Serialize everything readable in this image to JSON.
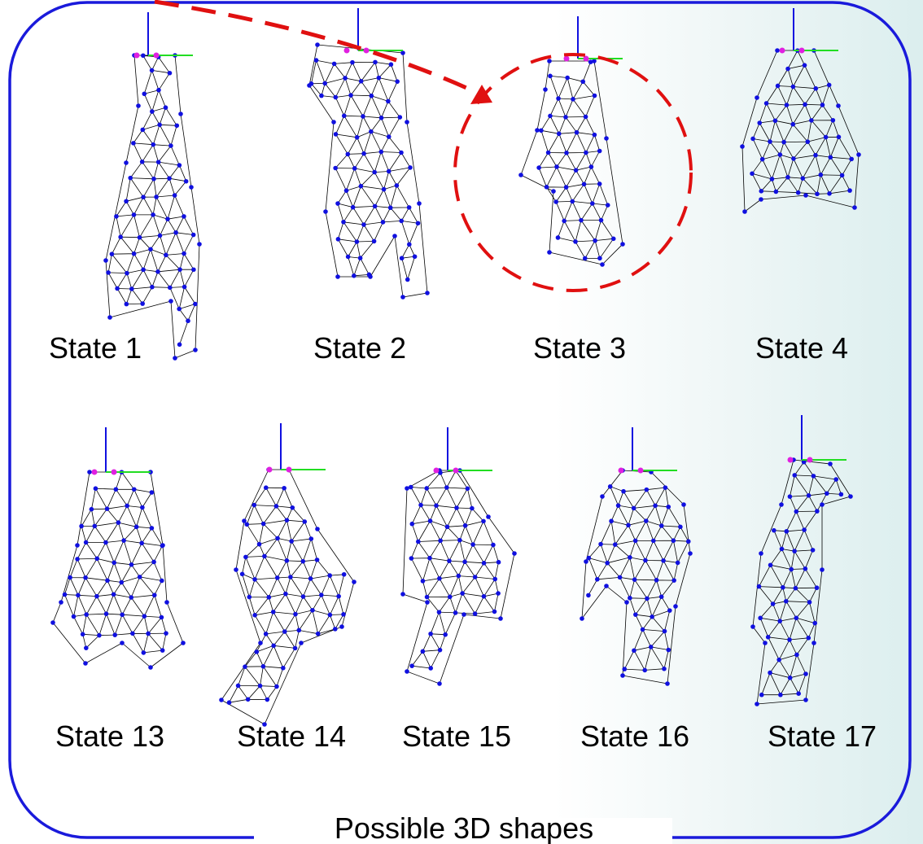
{
  "rows": [
    [
      {
        "label": "State 1"
      },
      {
        "label": "State 2"
      },
      {
        "label": "State 3"
      },
      {
        "label": "State 4"
      }
    ],
    [
      {
        "label": "State 13"
      },
      {
        "label": "State 14"
      },
      {
        "label": "State 15"
      },
      {
        "label": "State 16"
      },
      {
        "label": "State 17"
      }
    ]
  ],
  "caption": "Possible 3D shapes"
}
